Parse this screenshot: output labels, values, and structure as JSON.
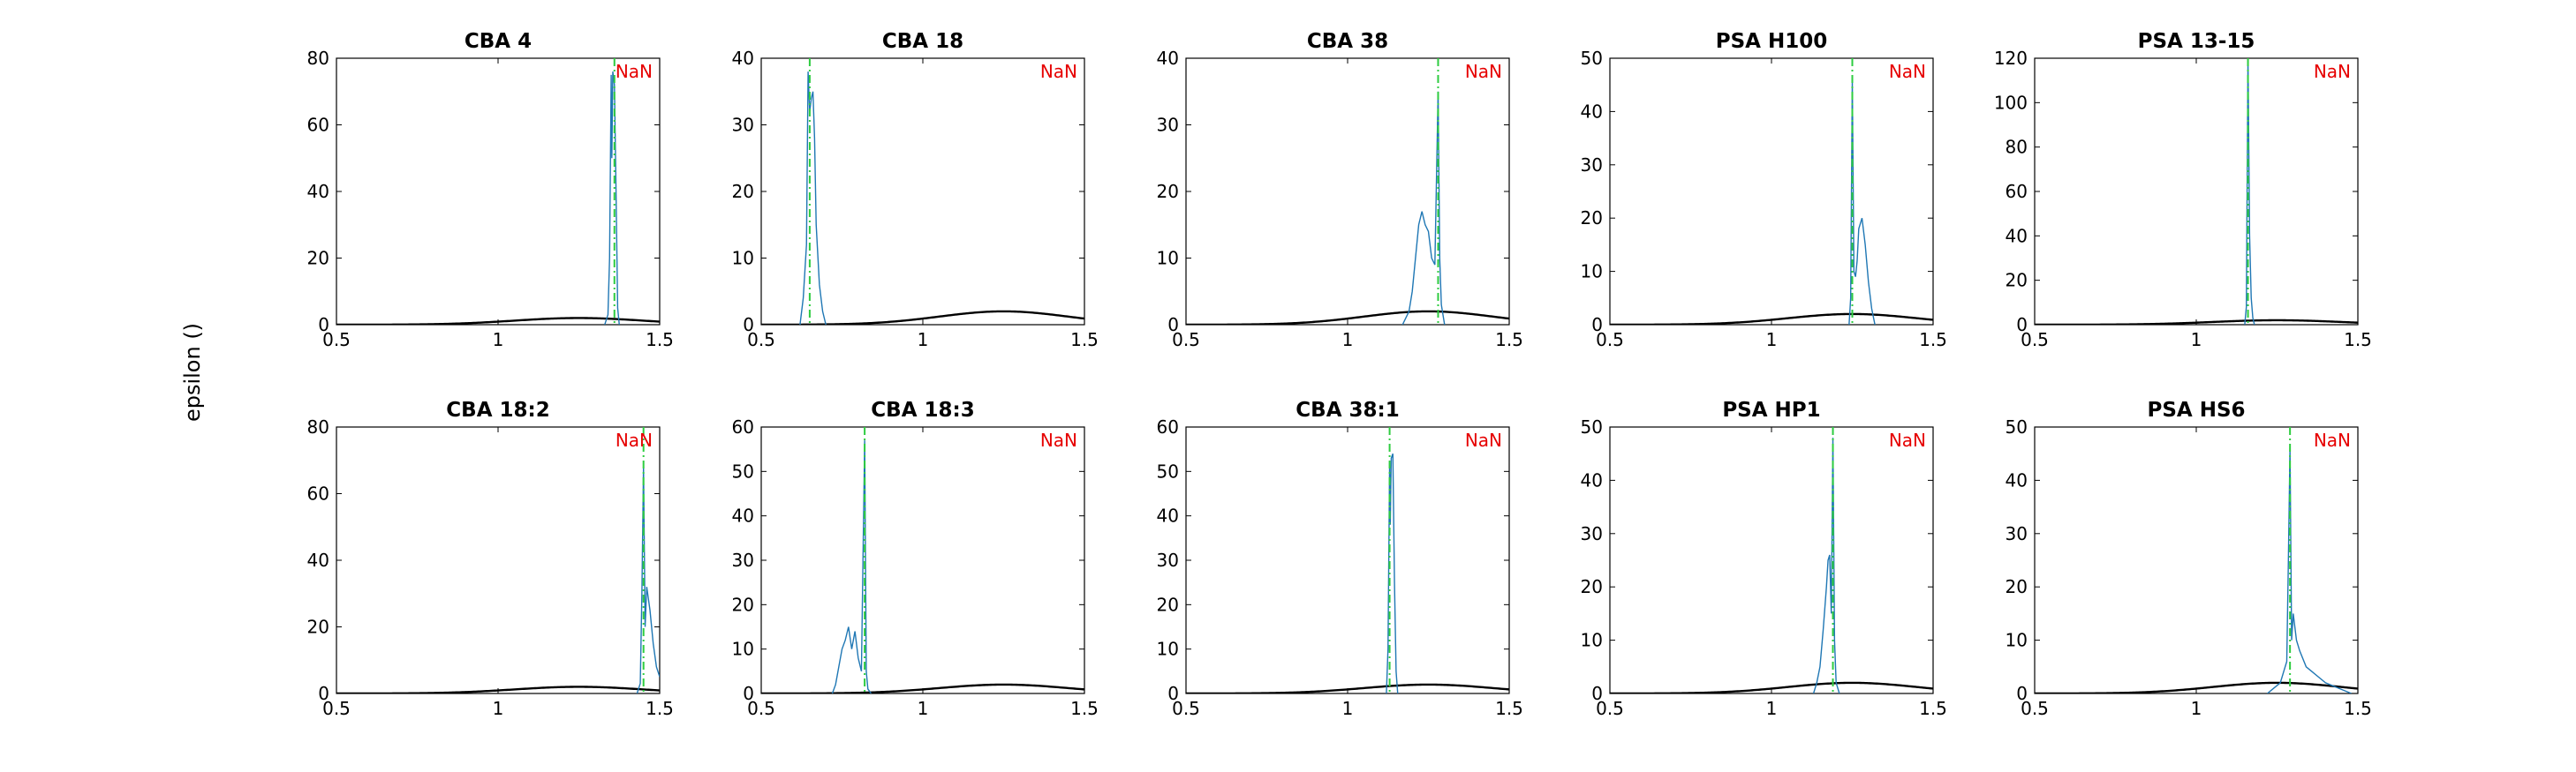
{
  "chart_data": {
    "type": "line",
    "ylabel": "epsilon ()",
    "grid": false,
    "colors": {
      "histogram": "#1f77b4",
      "prior": "#000000",
      "estimate": "#2ecc40",
      "annotation": "#e60000"
    },
    "panels": [
      {
        "title": "CBA 4",
        "annotation": "NaN",
        "xlim": [
          0.5,
          1.5
        ],
        "ylim": [
          0,
          80
        ],
        "xticks": [
          0.5,
          1,
          1.5
        ],
        "yticks": [
          0,
          20,
          40,
          60,
          80
        ],
        "estimate_x": 1.36,
        "prior_peak": 2,
        "histogram": [
          [
            1.33,
            0
          ],
          [
            1.34,
            3
          ],
          [
            1.345,
            20
          ],
          [
            1.35,
            75
          ],
          [
            1.352,
            50
          ],
          [
            1.355,
            76
          ],
          [
            1.36,
            72
          ],
          [
            1.365,
            40
          ],
          [
            1.37,
            5
          ],
          [
            1.375,
            0
          ]
        ]
      },
      {
        "title": "CBA 18",
        "annotation": "NaN",
        "xlim": [
          0.5,
          1.5
        ],
        "ylim": [
          0,
          40
        ],
        "xticks": [
          0.5,
          1,
          1.5
        ],
        "yticks": [
          0,
          10,
          20,
          30,
          40
        ],
        "estimate_x": 0.65,
        "prior_peak": 2,
        "histogram": [
          [
            0.62,
            0
          ],
          [
            0.63,
            4
          ],
          [
            0.64,
            12
          ],
          [
            0.645,
            38
          ],
          [
            0.65,
            32
          ],
          [
            0.655,
            34
          ],
          [
            0.66,
            35
          ],
          [
            0.665,
            28
          ],
          [
            0.67,
            15
          ],
          [
            0.68,
            6
          ],
          [
            0.69,
            2
          ],
          [
            0.7,
            0
          ]
        ]
      },
      {
        "title": "CBA 38",
        "annotation": "NaN",
        "xlim": [
          0.5,
          1.5
        ],
        "ylim": [
          0,
          40
        ],
        "xticks": [
          0.5,
          1,
          1.5
        ],
        "yticks": [
          0,
          10,
          20,
          30,
          40
        ],
        "estimate_x": 1.28,
        "prior_peak": 2,
        "histogram": [
          [
            1.17,
            0
          ],
          [
            1.19,
            2
          ],
          [
            1.2,
            5
          ],
          [
            1.21,
            10
          ],
          [
            1.22,
            15
          ],
          [
            1.23,
            17
          ],
          [
            1.24,
            15
          ],
          [
            1.25,
            14
          ],
          [
            1.26,
            10
          ],
          [
            1.27,
            9
          ],
          [
            1.28,
            35
          ],
          [
            1.285,
            10
          ],
          [
            1.29,
            3
          ],
          [
            1.3,
            0
          ]
        ]
      },
      {
        "title": "PSA H100",
        "annotation": "NaN",
        "xlim": [
          0.5,
          1.5
        ],
        "ylim": [
          0,
          50
        ],
        "xticks": [
          0.5,
          1,
          1.5
        ],
        "yticks": [
          0,
          10,
          20,
          30,
          40,
          50
        ],
        "estimate_x": 1.25,
        "prior_peak": 2,
        "histogram": [
          [
            1.24,
            0
          ],
          [
            1.245,
            5
          ],
          [
            1.25,
            46
          ],
          [
            1.255,
            10
          ],
          [
            1.26,
            9
          ],
          [
            1.265,
            12
          ],
          [
            1.27,
            18
          ],
          [
            1.28,
            20
          ],
          [
            1.29,
            15
          ],
          [
            1.3,
            8
          ],
          [
            1.31,
            3
          ],
          [
            1.32,
            0
          ]
        ]
      },
      {
        "title": "PSA 13-15",
        "annotation": "NaN",
        "xlim": [
          0.5,
          1.5
        ],
        "ylim": [
          0,
          120
        ],
        "xticks": [
          0.5,
          1,
          1.5
        ],
        "yticks": [
          0,
          20,
          40,
          60,
          80,
          100,
          120
        ],
        "estimate_x": 1.16,
        "prior_peak": 2,
        "histogram": [
          [
            1.15,
            0
          ],
          [
            1.155,
            8
          ],
          [
            1.16,
            120
          ],
          [
            1.165,
            40
          ],
          [
            1.17,
            12
          ],
          [
            1.175,
            3
          ],
          [
            1.18,
            0
          ]
        ]
      },
      {
        "title": "CBA 18:2",
        "annotation": "NaN",
        "xlim": [
          0.5,
          1.5
        ],
        "ylim": [
          0,
          80
        ],
        "xticks": [
          0.5,
          1,
          1.5
        ],
        "yticks": [
          0,
          20,
          40,
          60,
          80
        ],
        "estimate_x": 1.45,
        "prior_peak": 2,
        "histogram": [
          [
            1.43,
            0
          ],
          [
            1.44,
            3
          ],
          [
            1.445,
            30
          ],
          [
            1.45,
            68
          ],
          [
            1.455,
            20
          ],
          [
            1.46,
            32
          ],
          [
            1.47,
            25
          ],
          [
            1.48,
            15
          ],
          [
            1.49,
            8
          ],
          [
            1.5,
            5
          ]
        ]
      },
      {
        "title": "CBA 18:3",
        "annotation": "NaN",
        "xlim": [
          0.5,
          1.5
        ],
        "ylim": [
          0,
          60
        ],
        "xticks": [
          0.5,
          1,
          1.5
        ],
        "yticks": [
          0,
          10,
          20,
          30,
          40,
          50,
          60
        ],
        "estimate_x": 0.82,
        "prior_peak": 2,
        "histogram": [
          [
            0.72,
            0
          ],
          [
            0.73,
            2
          ],
          [
            0.74,
            6
          ],
          [
            0.75,
            10
          ],
          [
            0.76,
            12
          ],
          [
            0.77,
            15
          ],
          [
            0.78,
            10
          ],
          [
            0.79,
            14
          ],
          [
            0.8,
            8
          ],
          [
            0.81,
            5
          ],
          [
            0.82,
            57
          ],
          [
            0.825,
            5
          ],
          [
            0.83,
            1
          ],
          [
            0.84,
            0
          ]
        ]
      },
      {
        "title": "CBA 38:1",
        "annotation": "NaN",
        "xlim": [
          0.5,
          1.5
        ],
        "ylim": [
          0,
          60
        ],
        "xticks": [
          0.5,
          1,
          1.5
        ],
        "yticks": [
          0,
          10,
          20,
          30,
          40,
          50,
          60
        ],
        "estimate_x": 1.13,
        "prior_peak": 2,
        "histogram": [
          [
            1.12,
            0
          ],
          [
            1.125,
            10
          ],
          [
            1.13,
            52
          ],
          [
            1.132,
            38
          ],
          [
            1.135,
            53
          ],
          [
            1.14,
            54
          ],
          [
            1.145,
            25
          ],
          [
            1.15,
            5
          ],
          [
            1.155,
            0
          ]
        ]
      },
      {
        "title": "PSA HP1",
        "annotation": "NaN",
        "xlim": [
          0.5,
          1.5
        ],
        "ylim": [
          0,
          50
        ],
        "xticks": [
          0.5,
          1,
          1.5
        ],
        "yticks": [
          0,
          10,
          20,
          30,
          40,
          50
        ],
        "estimate_x": 1.19,
        "prior_peak": 2,
        "histogram": [
          [
            1.13,
            0
          ],
          [
            1.14,
            2
          ],
          [
            1.15,
            5
          ],
          [
            1.16,
            12
          ],
          [
            1.17,
            20
          ],
          [
            1.175,
            25
          ],
          [
            1.18,
            26
          ],
          [
            1.185,
            15
          ],
          [
            1.19,
            48
          ],
          [
            1.195,
            10
          ],
          [
            1.2,
            2
          ],
          [
            1.21,
            0
          ]
        ]
      },
      {
        "title": "PSA HS6",
        "annotation": "NaN",
        "xlim": [
          0.5,
          1.5
        ],
        "ylim": [
          0,
          50
        ],
        "xticks": [
          0.5,
          1,
          1.5
        ],
        "yticks": [
          0,
          10,
          20,
          30,
          40,
          50
        ],
        "estimate_x": 1.29,
        "prior_peak": 2,
        "histogram": [
          [
            1.22,
            0
          ],
          [
            1.24,
            1
          ],
          [
            1.26,
            2
          ],
          [
            1.27,
            4
          ],
          [
            1.28,
            6
          ],
          [
            1.285,
            25
          ],
          [
            1.29,
            46
          ],
          [
            1.295,
            10
          ],
          [
            1.3,
            15
          ],
          [
            1.31,
            10
          ],
          [
            1.32,
            8
          ],
          [
            1.34,
            5
          ],
          [
            1.36,
            4
          ],
          [
            1.38,
            3
          ],
          [
            1.4,
            2
          ],
          [
            1.42,
            1.5
          ],
          [
            1.44,
            1
          ],
          [
            1.46,
            0.5
          ],
          [
            1.48,
            0
          ]
        ]
      }
    ]
  }
}
